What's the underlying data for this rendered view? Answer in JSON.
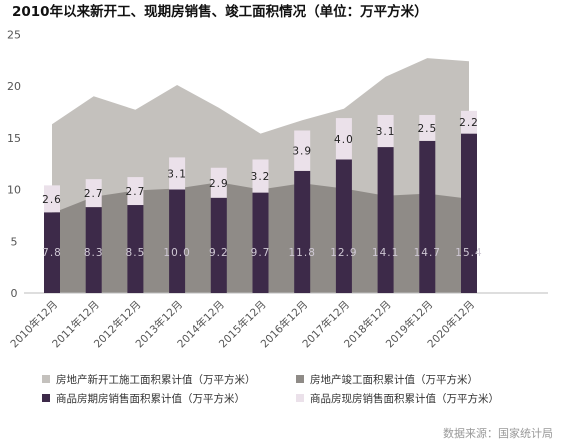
{
  "title": "2010年以来新开工、现期房销售、竣工面积情况（单位：万平方米）",
  "source": "数据来源：国家统计局",
  "colors": {
    "new_start": "#c4c1bd",
    "completed": "#8f8b87",
    "futures": "#3d2a49",
    "spot": "#ebe1ea",
    "axis_text": "#555555"
  },
  "chart_data": {
    "type": "bar",
    "categories": [
      "2010年12月",
      "2011年12月",
      "2012年12月",
      "2013年12月",
      "2014年12月",
      "2015年12月",
      "2016年12月",
      "2017年12月",
      "2018年12月",
      "2019年12月",
      "2020年12月"
    ],
    "ylim": [
      0,
      25
    ],
    "yticks": [
      0,
      5,
      10,
      15,
      20,
      25
    ],
    "series": [
      {
        "name": "房地产新开工施工面积累计值（万平方米）",
        "type": "area",
        "values": [
          16.3,
          19.0,
          17.7,
          20.1,
          17.9,
          15.4,
          16.7,
          17.8,
          20.9,
          22.7,
          22.4
        ]
      },
      {
        "name": "房地产竣工面积累计值（万平方米）",
        "type": "area",
        "values": [
          7.7,
          9.3,
          9.9,
          10.1,
          10.7,
          10.0,
          10.6,
          10.1,
          9.4,
          9.6,
          9.1
        ]
      },
      {
        "name": "商品房期房销售面积累计值（万平方米）",
        "type": "bar",
        "values": [
          7.8,
          8.3,
          8.5,
          10.0,
          9.2,
          9.7,
          11.8,
          12.9,
          14.1,
          14.7,
          15.4
        ]
      },
      {
        "name": "商品房现房销售面积累计值（万平方米）",
        "type": "bar",
        "values": [
          2.6,
          2.7,
          2.7,
          3.1,
          2.9,
          3.2,
          3.9,
          4.0,
          3.1,
          2.5,
          2.2
        ]
      }
    ],
    "futures_labels": [
      "7.8",
      "8.3",
      "8.5",
      "10.0",
      "9.2",
      "9.7",
      "11.8",
      "12.9",
      "14.1",
      "14.7",
      "15.4"
    ],
    "spot_labels": [
      "2.6",
      "2.7",
      "2.7",
      "3.1",
      "2.9",
      "3.2",
      "3.9",
      "4.0",
      "3.1",
      "2.5",
      "2.2"
    ],
    "legend": [
      {
        "label": "房地产新开工施工面积累计值（万平方米）",
        "color_key": "new_start"
      },
      {
        "label": "房地产竣工面积累计值（万平方米）",
        "color_key": "completed"
      },
      {
        "label": "商品房期房销售面积累计值（万平方米）",
        "color_key": "futures"
      },
      {
        "label": "商品房现房销售面积累计值（万平方米）",
        "color_key": "spot"
      }
    ],
    "grid": false,
    "legend_position": "bottom"
  }
}
